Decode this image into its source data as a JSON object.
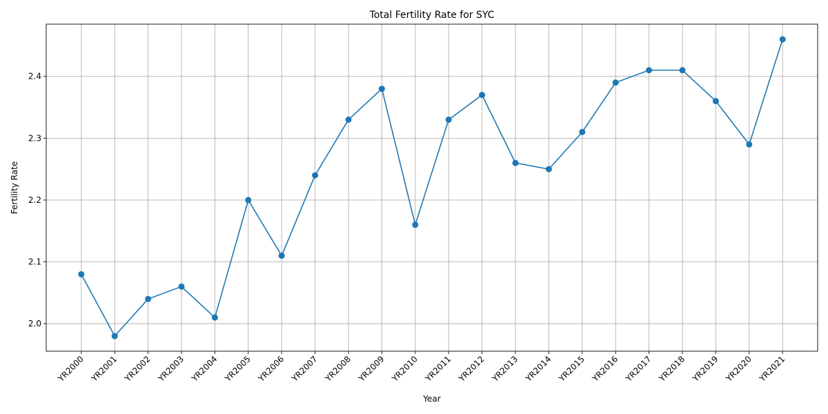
{
  "chart_data": {
    "type": "line",
    "title": "Total Fertility Rate for SYC",
    "xlabel": "Year",
    "ylabel": "Fertility Rate",
    "categories": [
      "YR2000",
      "YR2001",
      "YR2002",
      "YR2003",
      "YR2004",
      "YR2005",
      "YR2006",
      "YR2007",
      "YR2008",
      "YR2009",
      "YR2010",
      "YR2011",
      "YR2012",
      "YR2013",
      "YR2014",
      "YR2015",
      "YR2016",
      "YR2017",
      "YR2018",
      "YR2019",
      "YR2020",
      "YR2021"
    ],
    "series": [
      {
        "name": "SYC",
        "color": "#1f77b4",
        "values": [
          2.08,
          1.98,
          2.04,
          2.06,
          2.01,
          2.2,
          2.11,
          2.24,
          2.33,
          2.38,
          2.16,
          2.33,
          2.37,
          2.26,
          2.25,
          2.31,
          2.39,
          2.41,
          2.41,
          2.36,
          2.29,
          2.46
        ]
      }
    ],
    "ylim": [
      1.9555,
      2.4845
    ],
    "yticks": [
      2.0,
      2.1,
      2.2,
      2.3,
      2.4
    ],
    "ytick_labels": [
      "2.0",
      "2.1",
      "2.2",
      "2.3",
      "2.4"
    ],
    "grid": true,
    "marker": "circle"
  }
}
